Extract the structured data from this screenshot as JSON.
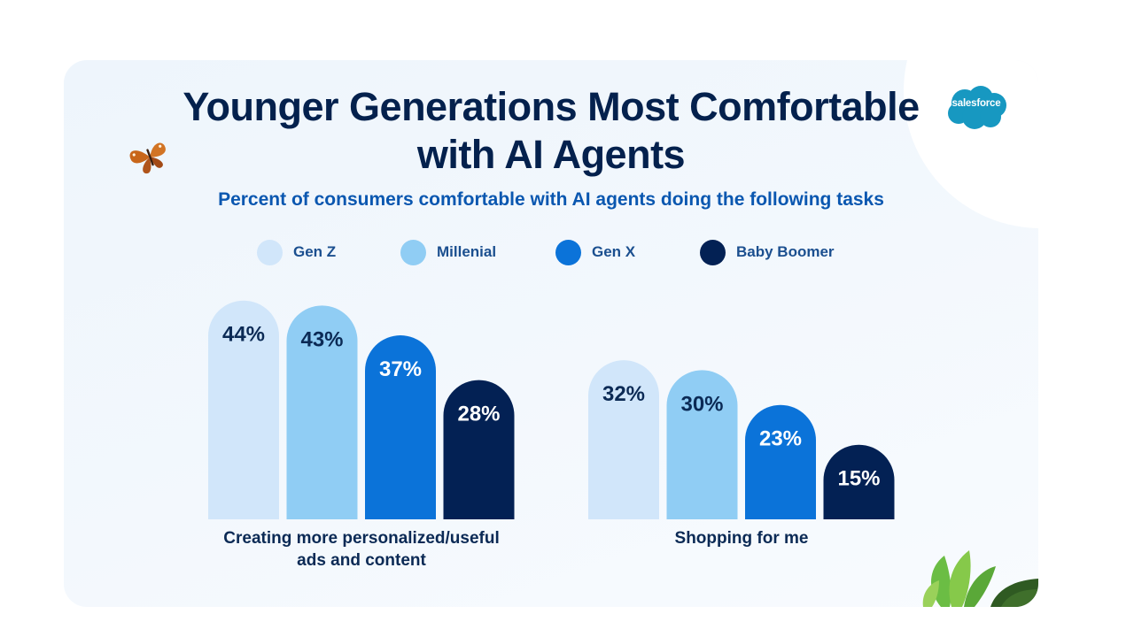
{
  "brand": {
    "logo_text": "salesforce",
    "color": "#1798c1"
  },
  "colors": {
    "gen_z": "#d1e6fa",
    "millenial": "#90cdf4",
    "gen_x": "#0b73d9",
    "baby_boomer": "#032154",
    "title": "#04214d",
    "subtitle": "#0a57b0"
  },
  "chart_data": {
    "type": "bar",
    "title": "Younger Generations Most Comfortable with AI Agents",
    "subtitle": "Percent of consumers comfortable with AI agents doing the following tasks",
    "categories": [
      "Creating more personalized/useful ads and content",
      "Shopping for me"
    ],
    "category_lines": [
      [
        "Creating more personalized/useful",
        "ads and content"
      ],
      [
        "Shopping for me"
      ]
    ],
    "series": [
      {
        "name": "Gen Z",
        "values": [
          44,
          32
        ],
        "labels": [
          "44%",
          "32%"
        ]
      },
      {
        "name": "Millenial",
        "values": [
          43,
          30
        ],
        "labels": [
          "43%",
          "30%"
        ]
      },
      {
        "name": "Gen X",
        "values": [
          37,
          23
        ],
        "labels": [
          "37%",
          "23%"
        ]
      },
      {
        "name": "Baby Boomer",
        "values": [
          28,
          15
        ],
        "labels": [
          "28%",
          "15%"
        ]
      }
    ],
    "ylim": [
      0,
      50
    ],
    "grid": false,
    "legend": "top",
    "xlabel": "",
    "ylabel": ""
  }
}
